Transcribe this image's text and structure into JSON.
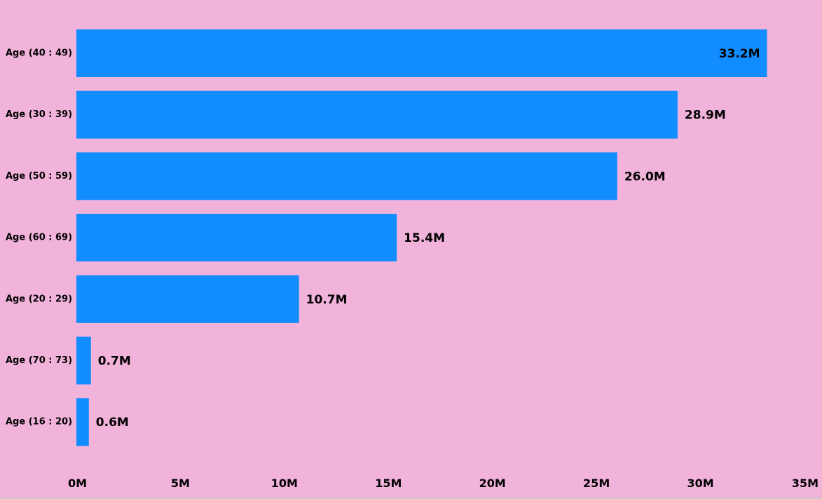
{
  "chart_data": {
    "type": "bar",
    "orientation": "horizontal",
    "categories": [
      "Age (40 : 49)",
      "Age (30 : 39)",
      "Age (50 : 59)",
      "Age (60 : 69)",
      "Age (20 : 29)",
      "Age (70 : 73)",
      "Age (16 : 20)"
    ],
    "values": [
      33.2,
      28.9,
      26.0,
      15.4,
      10.7,
      0.7,
      0.6
    ],
    "value_unit": "M",
    "data_labels": [
      "33.2M",
      "28.9M",
      "26.0M",
      "15.4M",
      "10.7M",
      "0.7M",
      "0.6M"
    ],
    "x_ticks": [
      0,
      5,
      10,
      15,
      20,
      25,
      30,
      35
    ],
    "x_tick_labels": [
      "0M",
      "5M",
      "10M",
      "15M",
      "20M",
      "25M",
      "30M",
      "35M"
    ],
    "xlim": [
      0,
      35
    ],
    "title": "",
    "xlabel": "",
    "ylabel": "",
    "grid": false,
    "legend": "none"
  },
  "colors": {
    "background": "#f2b3db",
    "bar": "#118dff",
    "text": "#000000"
  }
}
